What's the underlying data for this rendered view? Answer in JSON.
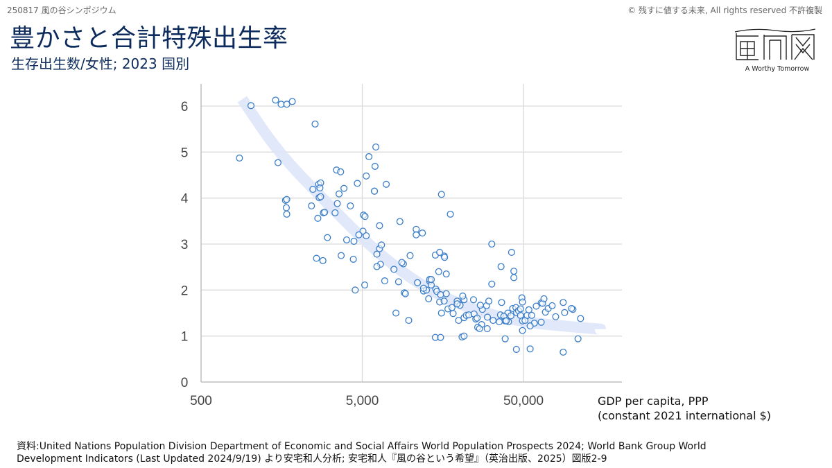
{
  "header": {
    "event": "250817 風の谷シンポジウム",
    "copyright": "© 残すに値する未来, All rights reserved 不許複製",
    "title": "豊かさと合計特殊出生率",
    "subtitle": "生存出生数/女性; 2023 国別",
    "logo_caption": "A Worthy Tomorrow",
    "logo_text": "風の谷"
  },
  "colors": {
    "title": "#0d2b5c",
    "marker": "#3a7dc9",
    "trend": "#dde6fa",
    "grid": "#d9d9d9"
  },
  "chart_data": {
    "type": "scatter",
    "title": "豊かさと合計特殊出生率",
    "subtitle": "生存出生数/女性; 2023 国別",
    "xlabel_line1": "GDP per capita, PPP",
    "xlabel_line2": "(constant 2021 international $)",
    "ylabel": "",
    "xscale": "log",
    "xlim": [
      500,
      204000
    ],
    "ylim": [
      0,
      6.5
    ],
    "xticks": [
      500,
      5000,
      50000
    ],
    "xtick_labels": [
      "500",
      "5,000",
      "50,000"
    ],
    "yticks": [
      0,
      1,
      2,
      3,
      4,
      5,
      6
    ],
    "ytick_labels": [
      "0",
      "1",
      "2",
      "3",
      "4",
      "5",
      "6"
    ],
    "grid": true,
    "trendline": {
      "x": [
        900,
        1500,
        3000,
        6000,
        12000,
        25000,
        50000,
        100000,
        150000
      ],
      "y": [
        6.15,
        5.0,
        3.9,
        2.85,
        2.05,
        1.55,
        1.3,
        1.2,
        1.15
      ]
    },
    "points": [
      [
        865,
        4.87
      ],
      [
        1020,
        6.01
      ],
      [
        1450,
        6.13
      ],
      [
        1570,
        6.04
      ],
      [
        1700,
        6.04
      ],
      [
        1840,
        6.1
      ],
      [
        2550,
        5.61
      ],
      [
        1500,
        4.77
      ],
      [
        1670,
        3.95
      ],
      [
        1700,
        3.97
      ],
      [
        1690,
        3.79
      ],
      [
        1700,
        3.65
      ],
      [
        2420,
        3.83
      ],
      [
        2470,
        4.19
      ],
      [
        2680,
        4.3
      ],
      [
        2760,
        4.33
      ],
      [
        2730,
        4.22
      ],
      [
        2700,
        4.01
      ],
      [
        2760,
        4.03
      ],
      [
        2870,
        3.68
      ],
      [
        2650,
        3.56
      ],
      [
        2920,
        3.69
      ],
      [
        3040,
        3.14
      ],
      [
        2600,
        2.69
      ],
      [
        2850,
        2.64
      ],
      [
        3460,
        4.61
      ],
      [
        3670,
        4.57
      ],
      [
        3500,
        3.88
      ],
      [
        3390,
        3.68
      ],
      [
        3850,
        4.21
      ],
      [
        3590,
        4.09
      ],
      [
        4220,
        3.83
      ],
      [
        4660,
        4.32
      ],
      [
        6070,
        5.11
      ],
      [
        5500,
        4.9
      ],
      [
        5290,
        4.48
      ],
      [
        6000,
        4.69
      ],
      [
        5950,
        4.15
      ],
      [
        4440,
        3.06
      ],
      [
        4400,
        2.67
      ],
      [
        4000,
        3.09
      ],
      [
        3700,
        2.75
      ],
      [
        5090,
        3.63
      ],
      [
        5200,
        3.6
      ],
      [
        5050,
        3.28
      ],
      [
        4760,
        3.2
      ],
      [
        5290,
        3.18
      ],
      [
        5950,
        4.15
      ],
      [
        6400,
        3.4
      ],
      [
        6160,
        2.78
      ],
      [
        6400,
        2.9
      ],
      [
        6580,
        2.98
      ],
      [
        6480,
        2.56
      ],
      [
        6160,
        2.51
      ],
      [
        7040,
        4.3
      ],
      [
        8560,
        3.49
      ],
      [
        4520,
        2.0
      ],
      [
        5180,
        2.11
      ],
      [
        7860,
        2.45
      ],
      [
        8400,
        2.18
      ],
      [
        9130,
        1.94
      ],
      [
        9260,
        1.92
      ],
      [
        8090,
        1.5
      ],
      [
        9710,
        1.34
      ],
      [
        6890,
        2.2
      ],
      [
        9000,
        2.57
      ],
      [
        8800,
        2.6
      ],
      [
        9900,
        2.75
      ],
      [
        10800,
        3.32
      ],
      [
        10800,
        3.2
      ],
      [
        11800,
        3.24
      ],
      [
        15500,
        4.08
      ],
      [
        17600,
        3.65
      ],
      [
        16100,
        2.74
      ],
      [
        16200,
        2.71
      ],
      [
        16600,
        2.35
      ],
      [
        11000,
        2.16
      ],
      [
        12000,
        1.98
      ],
      [
        12500,
        2.0
      ],
      [
        12900,
        1.81
      ],
      [
        12000,
        2.04
      ],
      [
        13100,
        2.19
      ],
      [
        13400,
        2.11
      ],
      [
        13100,
        2.23
      ],
      [
        14300,
        2.02
      ],
      [
        13400,
        2.23
      ],
      [
        14500,
        1.97
      ],
      [
        15300,
        1.9
      ],
      [
        15100,
        1.74
      ],
      [
        16100,
        1.76
      ],
      [
        16600,
        1.92
      ],
      [
        15500,
        1.5
      ],
      [
        17000,
        1.59
      ],
      [
        18000,
        1.62
      ],
      [
        14200,
        2.76
      ],
      [
        15100,
        2.82
      ],
      [
        14900,
        2.4
      ],
      [
        19400,
        1.76
      ],
      [
        20200,
        1.67
      ],
      [
        21400,
        1.79
      ],
      [
        21000,
        1.87
      ],
      [
        19400,
        1.7
      ],
      [
        18300,
        1.49
      ],
      [
        19800,
        1.34
      ],
      [
        21400,
        1.4
      ],
      [
        22100,
        1.45
      ],
      [
        20800,
        0.98
      ],
      [
        14200,
        0.97
      ],
      [
        22900,
        1.46
      ],
      [
        24700,
        1.48
      ],
      [
        25300,
        1.37
      ],
      [
        24500,
        1.79
      ],
      [
        25800,
        1.39
      ],
      [
        27800,
        1.58
      ],
      [
        29500,
        1.66
      ],
      [
        27500,
        1.25
      ],
      [
        26000,
        1.19
      ],
      [
        26700,
        1.16
      ],
      [
        27000,
        1.67
      ],
      [
        29900,
        1.41
      ],
      [
        30500,
        1.76
      ],
      [
        32400,
        1.34
      ],
      [
        31800,
        2.13
      ],
      [
        31800,
        3.0
      ],
      [
        36300,
        2.51
      ],
      [
        40400,
        1.31
      ],
      [
        40000,
        1.5
      ],
      [
        36600,
        1.73
      ],
      [
        36000,
        1.46
      ],
      [
        37800,
        1.43
      ],
      [
        38500,
        1.33
      ],
      [
        35400,
        1.31
      ],
      [
        39100,
        1.33
      ],
      [
        42900,
        1.6
      ],
      [
        42200,
        2.82
      ],
      [
        43600,
        2.41
      ],
      [
        43600,
        2.27
      ],
      [
        44900,
        1.62
      ],
      [
        41800,
        1.44
      ],
      [
        45300,
        1.51
      ],
      [
        46600,
        1.55
      ],
      [
        47900,
        1.45
      ],
      [
        49300,
        1.33
      ],
      [
        47900,
        1.59
      ],
      [
        49300,
        1.12
      ],
      [
        51100,
        1.34
      ],
      [
        52700,
        1.45
      ],
      [
        48900,
        1.83
      ],
      [
        49300,
        1.74
      ],
      [
        54000,
        1.57
      ],
      [
        56200,
        1.45
      ],
      [
        60000,
        1.65
      ],
      [
        64400,
        1.72
      ],
      [
        65700,
        1.71
      ],
      [
        58400,
        1.28
      ],
      [
        55000,
        1.22
      ],
      [
        64400,
        1.3
      ],
      [
        68400,
        1.52
      ],
      [
        71200,
        1.6
      ],
      [
        79200,
        1.42
      ],
      [
        90000,
        1.51
      ],
      [
        101300,
        1.58
      ],
      [
        113000,
        1.38
      ],
      [
        99300,
        1.6
      ],
      [
        88200,
        1.73
      ],
      [
        75300,
        1.66
      ],
      [
        67000,
        1.81
      ],
      [
        109000,
        0.94
      ],
      [
        88200,
        0.65
      ],
      [
        55000,
        0.72
      ],
      [
        45200,
        0.71
      ],
      [
        38500,
        0.94
      ],
      [
        29800,
        1.16
      ],
      [
        15300,
        0.97
      ],
      [
        21400,
        1.0
      ]
    ]
  },
  "source": {
    "line1": "資料:United Nations Population Division Department of Economic and Social Affairs World Population Prospects 2024; World Bank Group World",
    "line2": "Development Indicators (Last Updated 2024/9/19) より安宅和人分析; 安宅和人『風の谷という希望』（英治出版、2025）図版2-9"
  }
}
